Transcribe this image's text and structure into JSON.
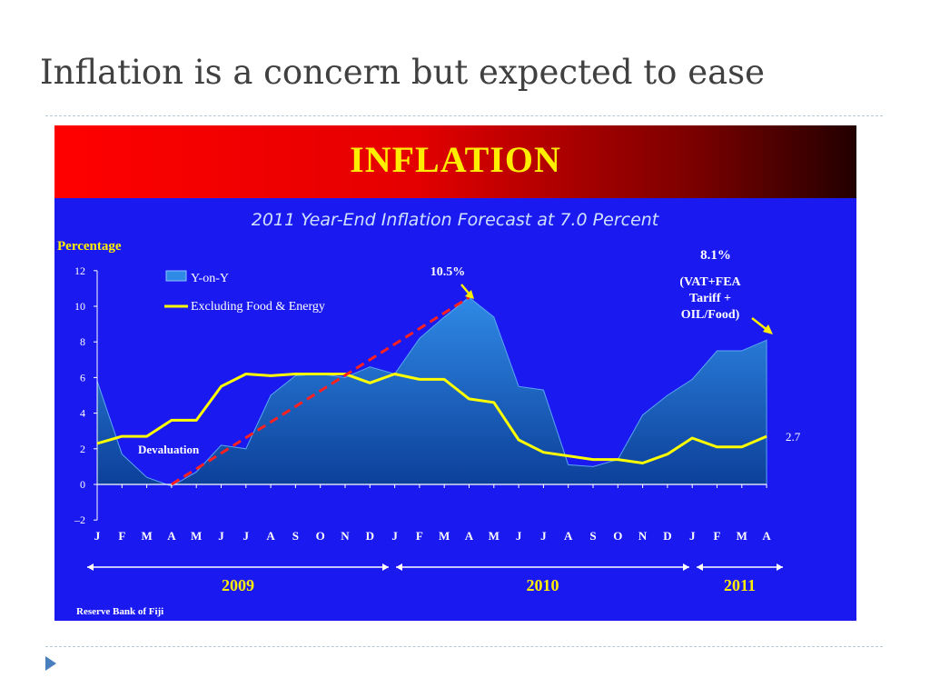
{
  "slide": {
    "title": "Inflation is a concern but expected to ease"
  },
  "banner": {
    "title": "INFLATION"
  },
  "colors": {
    "banner_gradient": [
      "#ff0000",
      "#220000"
    ],
    "banner_text": "#ffee00",
    "chart_background": "#1a1af0",
    "area_fill": "#1e6fc8",
    "core_line": "#ffff00",
    "trend_line": "#ff2020"
  },
  "chart_data": {
    "type": "area",
    "title": "2011 Year-End Inflation Forecast at 7.0 Percent",
    "ylabel": "Percentage",
    "ylim": [
      -2,
      12
    ],
    "yticks": [
      "12",
      "10",
      "8",
      "6",
      "4",
      "2",
      "0",
      "–2"
    ],
    "x": [
      "J",
      "F",
      "M",
      "A",
      "M",
      "J",
      "J",
      "A",
      "S",
      "O",
      "N",
      "D",
      "J",
      "F",
      "M",
      "A",
      "M",
      "J",
      "J",
      "A",
      "S",
      "O",
      "N",
      "D",
      "J",
      "F",
      "M",
      "A"
    ],
    "years": [
      {
        "label": "2009",
        "from": 0,
        "to": 11
      },
      {
        "label": "2010",
        "from": 12,
        "to": 23
      },
      {
        "label": "2011",
        "from": 24,
        "to": 27
      }
    ],
    "legend": [
      {
        "name": "Y-on-Y",
        "symbol": "area"
      },
      {
        "name": "Excluding Food & Energy",
        "symbol": "line"
      }
    ],
    "legend_position": "top-left",
    "series": [
      {
        "name": "Y-on-Y",
        "kind": "area",
        "values": [
          5.8,
          1.7,
          0.4,
          -0.1,
          0.7,
          2.2,
          2.0,
          5.0,
          6.1,
          6.2,
          6.0,
          6.6,
          6.2,
          8.2,
          9.4,
          10.5,
          9.4,
          5.5,
          5.3,
          1.1,
          1.0,
          1.4,
          3.9,
          5.0,
          5.9,
          7.5,
          7.5,
          8.1
        ]
      },
      {
        "name": "Excluding Food & Energy",
        "kind": "line",
        "values": [
          2.3,
          2.7,
          2.7,
          3.6,
          3.6,
          5.5,
          6.2,
          6.1,
          6.2,
          6.2,
          6.2,
          5.7,
          6.2,
          5.9,
          5.9,
          4.8,
          4.6,
          2.5,
          1.8,
          1.6,
          1.4,
          1.4,
          1.2,
          1.7,
          2.6,
          2.1,
          2.1,
          2.7
        ]
      }
    ],
    "trend_line": {
      "from_index": 3,
      "from_value": 0,
      "to_index": 15,
      "to_value": 10.5
    },
    "annotations": {
      "peak": "10.5%",
      "latest_line1": "8.1%",
      "latest_line2": "(VAT+FEA",
      "latest_line3": "Tariff +",
      "latest_line4": "OIL/Food)",
      "core_end": "2.7",
      "devaluation": "Devaluation"
    },
    "source": "Reserve Bank of Fiji"
  }
}
